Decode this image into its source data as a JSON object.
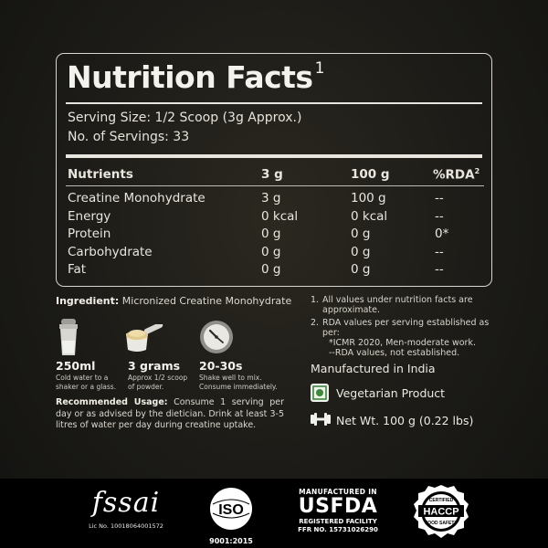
{
  "nutrition": {
    "title": "Nutrition Facts",
    "title_sup": "1",
    "serving_size": "Serving Size: 1/2 Scoop (3g Approx.)",
    "servings": "No. of Servings: 33",
    "headers": [
      "Nutrients",
      "3 g",
      "100 g",
      "%RDA"
    ],
    "header_sup": "2",
    "rows": [
      [
        "Creatine Monohydrate",
        "3 g",
        "100 g",
        "--"
      ],
      [
        "Energy",
        "0 kcal",
        "0 kcal",
        "--"
      ],
      [
        "Protein",
        "0 g",
        "0 g",
        "0*"
      ],
      [
        "Carbohydrate",
        "0 g",
        "0 g",
        "--"
      ],
      [
        "Fat",
        "0 g",
        "0 g",
        "--"
      ]
    ]
  },
  "ingredient": {
    "label": "Ingredient:",
    "value": " Micronized Creatine Monohydrate"
  },
  "stats": [
    {
      "big": "250ml",
      "line1": "Cold water to a",
      "line2": "shaker or a glass.",
      "icon": "shaker-icon"
    },
    {
      "big": "3 grams",
      "line1": "Approx 1/2 scoop",
      "line2": "of powder.",
      "icon": "scoop-icon"
    },
    {
      "big": "20-30s",
      "line1": "Shake well to mix.",
      "line2": "Consume immediately.",
      "icon": "clock-icon"
    }
  ],
  "usage": {
    "label": "Recommended Usage:",
    "text": " Consume 1 serving per day or as advised by the dietician. Drink at least 3-5 litres of water per day during creatine uptake."
  },
  "notes": {
    "n1_num": "1.",
    "n1": "All values under nutrition facts are approximate.",
    "n2_num": "2.",
    "n2": "RDA values per serving established as per:",
    "n2a": "*ICMR 2020, Men-moderate work.",
    "n2b": "--RDA values, not established."
  },
  "product": {
    "manufactured": "Manufactured in India",
    "veg": "Vegetarian Product",
    "net_wt": "Net Wt. 100 g (0.22 lbs)"
  },
  "footer": {
    "fssai": "fssai",
    "fssai_lic": "Lic No. 10018064001572",
    "iso": "ISO",
    "iso_num": "9001:2015",
    "usfda_top": "MANUFACTURED IN",
    "usfda_main": "USFDA",
    "usfda_sub1": "REGISTERED FACILITY",
    "usfda_sub2": "FFR NO. 15731026290",
    "haccp_top": "CERTIFIED",
    "haccp": "HACCP",
    "haccp_bottom": "FOOD SAFETY"
  },
  "colors": {
    "background": "#1c1b17",
    "text": "#e9e6dd",
    "footer": "#000000",
    "veg_green": "#3a8a3a"
  }
}
